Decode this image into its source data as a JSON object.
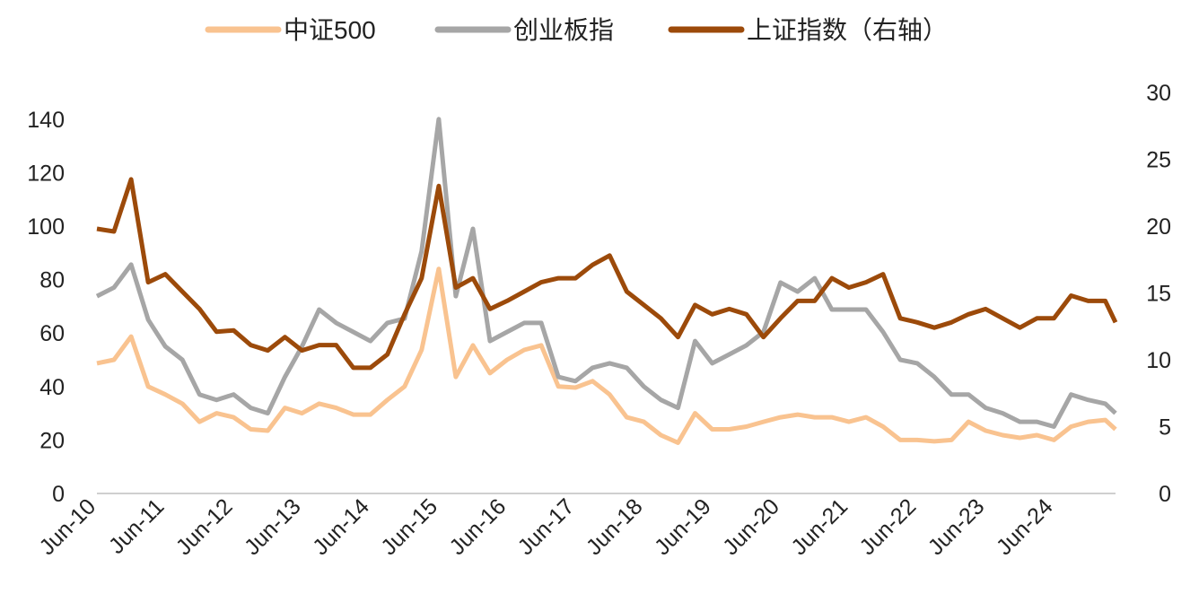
{
  "chart_data": {
    "type": "line",
    "title": "",
    "legend_position": "top",
    "x_start": "Jun-10",
    "x_step": "quarter",
    "x_tick_labels": [
      "Jun-10",
      "Jun-11",
      "Jun-12",
      "Jun-13",
      "Jun-14",
      "Jun-15",
      "Jun-16",
      "Jun-17",
      "Jun-18",
      "Jun-19",
      "Jun-20",
      "Jun-21",
      "Jun-22",
      "Jun-23",
      "Jun-24"
    ],
    "y_left": {
      "range": [
        0,
        150
      ],
      "ticks": [
        0,
        20,
        40,
        60,
        80,
        100,
        120,
        140
      ]
    },
    "y_right": {
      "range": [
        0,
        30
      ],
      "ticks": [
        0,
        5,
        10,
        15,
        20,
        25,
        30
      ]
    },
    "grid": false,
    "series": [
      {
        "name": "中证500",
        "axis": "left",
        "color": "#F9C390",
        "values": [
          48.7,
          50,
          58.7,
          40,
          37,
          33.6,
          26.8,
          30,
          28.5,
          24,
          23.5,
          32,
          30,
          33.6,
          32,
          29.5,
          29.5,
          35,
          40,
          53.7,
          84,
          43.6,
          55.4,
          45,
          50,
          53.7,
          55.4,
          40,
          39.6,
          42,
          37,
          28.5,
          26.8,
          21.8,
          19,
          30,
          24,
          24,
          25,
          26.8,
          28.5,
          29.5,
          28.5,
          28.5,
          26.8,
          28.5,
          25,
          20,
          20,
          19.5,
          20,
          26.8,
          23.5,
          21.8,
          20.8,
          21.8,
          20,
          25,
          26.8,
          27.5,
          24
        ]
      },
      {
        "name": "创业板指",
        "axis": "left",
        "color": "#A6A6A6",
        "values": [
          73.8,
          77,
          85.6,
          65,
          55,
          50,
          37,
          35,
          37,
          32,
          30,
          43.6,
          55,
          68.8,
          63.8,
          60.4,
          57,
          63.8,
          65.4,
          90.6,
          140,
          73.8,
          99,
          57,
          60.4,
          63.8,
          63.8,
          43.6,
          42,
          47,
          48.7,
          47,
          40,
          35,
          32,
          57,
          48.7,
          52,
          55.4,
          60.4,
          78.9,
          75.5,
          80.5,
          68.8,
          68.8,
          68.8,
          60.4,
          50,
          48.7,
          43.6,
          37,
          37,
          32,
          30,
          26.8,
          26.8,
          25,
          37,
          35,
          33.6,
          30
        ]
      },
      {
        "name": "上证指数（右轴）",
        "axis": "right",
        "color": "#9C4A0A",
        "values": [
          19.8,
          19.6,
          23.5,
          15.8,
          16.4,
          15.1,
          13.8,
          12.1,
          12.2,
          11.1,
          10.7,
          11.7,
          10.7,
          11.1,
          11.1,
          9.4,
          9.4,
          10.4,
          13.4,
          16.1,
          23,
          15.4,
          16.1,
          13.8,
          14.4,
          15.1,
          15.8,
          16.1,
          16.1,
          17.1,
          17.8,
          15.1,
          14.1,
          13.1,
          11.7,
          14.1,
          13.4,
          13.8,
          13.4,
          11.7,
          13.1,
          14.4,
          14.4,
          16.1,
          15.4,
          15.8,
          16.4,
          13.1,
          12.8,
          12.4,
          12.8,
          13.4,
          13.8,
          13.1,
          12.4,
          13.1,
          13.1,
          14.8,
          14.4,
          14.4,
          12.8
        ]
      }
    ]
  }
}
